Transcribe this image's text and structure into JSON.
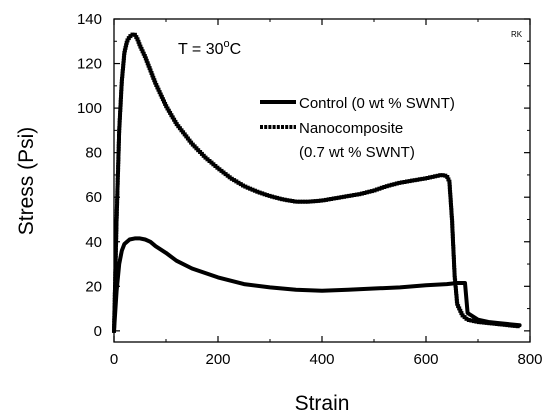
{
  "chart_data": {
    "type": "line",
    "xlabel": "Strain",
    "ylabel": "Stress (Psi)",
    "xlim": [
      0,
      800
    ],
    "ylim": [
      -5,
      140
    ],
    "xticks": [
      "0",
      "200",
      "400",
      "600",
      "800"
    ],
    "yticks": [
      "0",
      "20",
      "40",
      "60",
      "80",
      "100",
      "120",
      "140"
    ],
    "grid": false,
    "legend": "upper-right",
    "annotation": {
      "text": "T = 30",
      "superscript": "o",
      "unit": "C"
    },
    "corner_mark": "RK",
    "series": [
      {
        "name": "Control (0 wt % SWNT)",
        "style": "thick-line",
        "x": [
          0,
          5,
          10,
          15,
          20,
          30,
          40,
          50,
          60,
          70,
          80,
          100,
          120,
          150,
          200,
          250,
          300,
          350,
          400,
          450,
          500,
          550,
          600,
          640,
          660,
          670,
          675,
          680,
          700,
          720,
          740,
          760,
          780
        ],
        "y": [
          0,
          18,
          30,
          36,
          39,
          41,
          41.5,
          41.5,
          41,
          40,
          38,
          35,
          31.5,
          28,
          24,
          21,
          19.5,
          18.5,
          18,
          18.5,
          19,
          19.5,
          20.5,
          21,
          21.5,
          21.5,
          21.5,
          8,
          5,
          4,
          3.5,
          3,
          2.5
        ]
      },
      {
        "name": "Nanocomposite",
        "name_line2": "(0.7 wt % SWNT)",
        "style": "square-markers",
        "x": [
          0,
          5,
          10,
          15,
          20,
          25,
          30,
          35,
          40,
          45,
          50,
          60,
          70,
          80,
          100,
          120,
          150,
          175,
          200,
          225,
          250,
          275,
          300,
          325,
          350,
          375,
          400,
          425,
          450,
          475,
          500,
          525,
          550,
          575,
          600,
          620,
          630,
          640,
          645,
          650,
          655,
          660,
          670,
          680,
          700,
          720,
          740,
          760,
          780
        ],
        "y": [
          0,
          50,
          90,
          112,
          125,
          130,
          132,
          133,
          133,
          131,
          128,
          123,
          117,
          111,
          101,
          93,
          84,
          78,
          73,
          68.5,
          65,
          62.5,
          60.5,
          59,
          58,
          58,
          58.5,
          59.5,
          60.5,
          61.5,
          63,
          65,
          66.5,
          67.5,
          68.5,
          69.5,
          70,
          69.5,
          67,
          50,
          25,
          12,
          7,
          5,
          4,
          3.5,
          3,
          2.5,
          2
        ]
      }
    ]
  }
}
